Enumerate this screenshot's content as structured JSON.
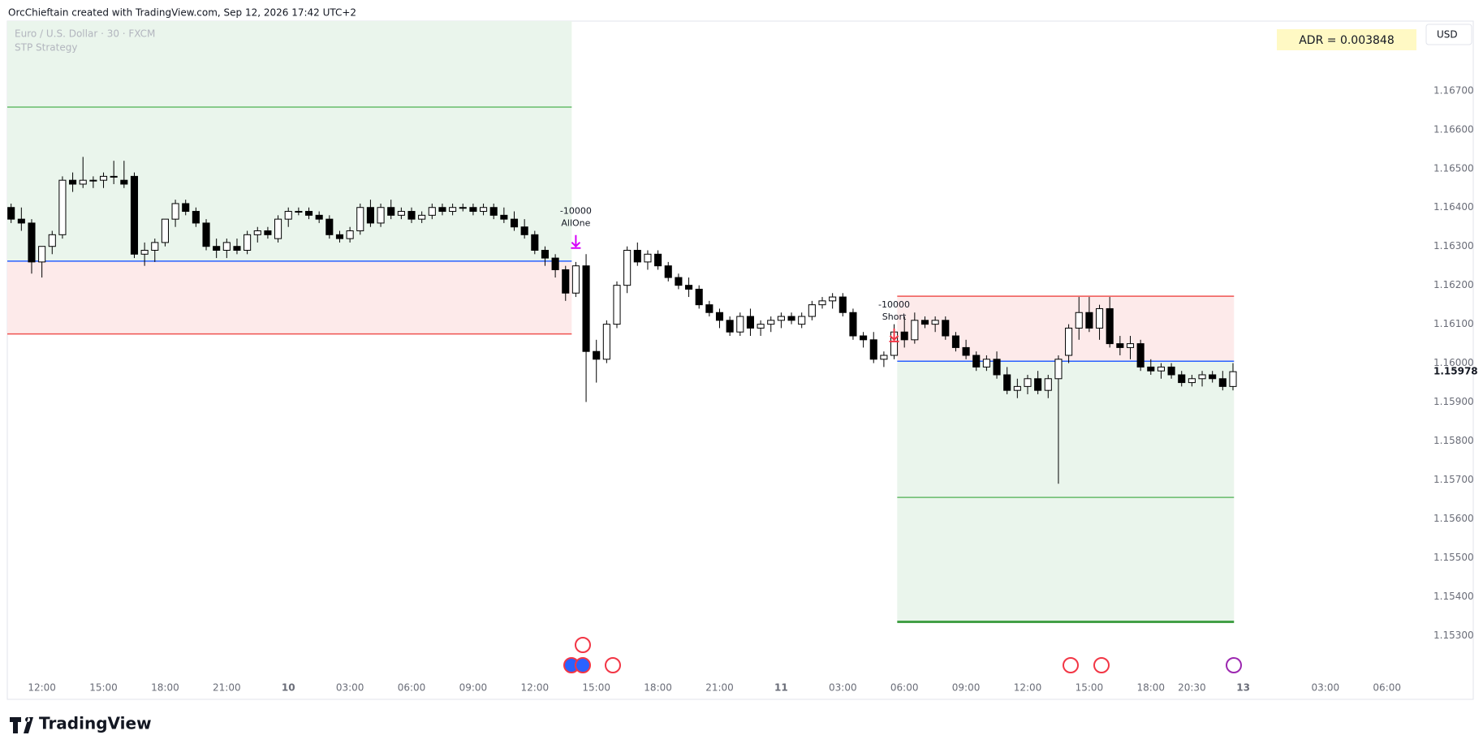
{
  "header": "OrcChieftain created with TradingView.com, Sep 12, 2026 17:42 UTC+2",
  "footer_brand": "TradingView",
  "chart_data": {
    "type": "candlestick",
    "title": "Euro / U.S. Dollar · 30 · FXCM",
    "subtitle": "STP Strategy",
    "adr_label": "ADR = 0.003848",
    "currency": "USD",
    "up_color": "#ffffff",
    "down_color": "#000000",
    "open": [
      1.164,
      1.1637,
      1.1636,
      1.1626,
      1.163,
      1.1633,
      1.1647,
      1.1646,
      1.1647,
      1.1647,
      1.1648,
      1.1647,
      1.1648,
      1.1628,
      1.1629,
      1.1631,
      1.1637,
      1.1641,
      1.1639,
      1.1636,
      1.163,
      1.1629,
      1.163,
      1.1629,
      1.1633,
      1.1634,
      1.1632,
      1.1637,
      1.1639,
      1.1639,
      1.1638,
      1.1637,
      1.1633,
      1.1632,
      1.1634,
      1.164,
      1.1636,
      1.164,
      1.1638,
      1.1639,
      1.1637,
      1.1638,
      1.164,
      1.1639,
      1.164,
      1.164,
      1.1639,
      1.164,
      1.1638,
      1.1637,
      1.1635,
      1.1633,
      1.1629,
      1.1627,
      1.1624,
      1.1618,
      1.1625,
      1.1603,
      1.1601,
      1.161,
      1.162,
      1.1629,
      1.1626,
      1.1628,
      1.1625,
      1.1622,
      1.162,
      1.1619,
      1.1615,
      1.1613,
      1.1611,
      1.1608,
      1.1612,
      1.1609,
      1.161,
      1.1611,
      1.1612,
      1.161,
      1.1612,
      1.1615,
      1.1616,
      1.1617,
      1.1613,
      1.1607,
      1.1606,
      1.1601,
      1.1602,
      1.1608,
      1.1606,
      1.1611,
      1.161,
      1.1611,
      1.1607,
      1.1604,
      1.1602,
      1.1599,
      1.1601,
      1.1597,
      1.1593,
      1.1594,
      1.1596,
      1.1593,
      1.1596,
      1.1602,
      1.1609,
      1.1613,
      1.1609,
      1.1614,
      1.1605,
      1.1604,
      1.1605,
      1.1599,
      1.1598,
      1.1599,
      1.1597,
      1.1595,
      1.1596,
      1.1597,
      1.1596,
      1.1594
    ],
    "high": [
      1.1641,
      1.164,
      1.1637,
      1.163,
      1.1634,
      1.1648,
      1.1649,
      1.1653,
      1.1648,
      1.1649,
      1.1652,
      1.1652,
      1.1649,
      1.1631,
      1.1632,
      1.1637,
      1.1642,
      1.1642,
      1.164,
      1.1637,
      1.1632,
      1.1632,
      1.1632,
      1.1634,
      1.1635,
      1.1635,
      1.1638,
      1.164,
      1.164,
      1.164,
      1.1639,
      1.1638,
      1.1634,
      1.1635,
      1.1641,
      1.1642,
      1.1641,
      1.1642,
      1.164,
      1.164,
      1.1639,
      1.1641,
      1.1641,
      1.1641,
      1.1641,
      1.1641,
      1.1641,
      1.1641,
      1.164,
      1.1639,
      1.1637,
      1.1634,
      1.163,
      1.1628,
      1.1625,
      1.1626,
      1.1628,
      1.1606,
      1.1611,
      1.1621,
      1.163,
      1.1631,
      1.1629,
      1.1629,
      1.1626,
      1.1623,
      1.1622,
      1.162,
      1.1616,
      1.1614,
      1.1612,
      1.1613,
      1.1614,
      1.1611,
      1.1612,
      1.1613,
      1.1613,
      1.1613,
      1.1616,
      1.1617,
      1.1618,
      1.1618,
      1.1614,
      1.1608,
      1.1608,
      1.1603,
      1.161,
      1.1612,
      1.1613,
      1.1612,
      1.1612,
      1.1612,
      1.1608,
      1.1606,
      1.1603,
      1.1602,
      1.1603,
      1.1599,
      1.1596,
      1.1597,
      1.1598,
      1.1597,
      1.1602,
      1.161,
      1.1617,
      1.1617,
      1.1615,
      1.1617,
      1.1607,
      1.1607,
      1.1606,
      1.1601,
      1.16,
      1.16,
      1.1598,
      1.1597,
      1.1598,
      1.1598,
      1.1598,
      1.16
    ],
    "low": [
      1.1636,
      1.1634,
      1.1623,
      1.1622,
      1.1628,
      1.1632,
      1.1644,
      1.1645,
      1.1645,
      1.1645,
      1.1646,
      1.1645,
      1.1627,
      1.1625,
      1.1626,
      1.163,
      1.1635,
      1.1638,
      1.1635,
      1.1629,
      1.1627,
      1.1627,
      1.1628,
      1.1628,
      1.1631,
      1.1632,
      1.1631,
      1.1635,
      1.1638,
      1.1637,
      1.1636,
      1.1632,
      1.1631,
      1.1631,
      1.1633,
      1.1635,
      1.1635,
      1.1637,
      1.1637,
      1.1636,
      1.1636,
      1.1637,
      1.1638,
      1.1638,
      1.1639,
      1.1638,
      1.1638,
      1.1637,
      1.1636,
      1.1634,
      1.1632,
      1.1628,
      1.1625,
      1.1622,
      1.1616,
      1.1617,
      1.159,
      1.1595,
      1.16,
      1.1609,
      1.1618,
      1.1625,
      1.1624,
      1.1624,
      1.1621,
      1.1619,
      1.1617,
      1.1614,
      1.1612,
      1.1609,
      1.1607,
      1.1607,
      1.1607,
      1.1607,
      1.1608,
      1.1609,
      1.161,
      1.1609,
      1.1611,
      1.1614,
      1.1614,
      1.1612,
      1.1606,
      1.1604,
      1.16,
      1.1599,
      1.1601,
      1.1604,
      1.1605,
      1.1609,
      1.1608,
      1.1606,
      1.1603,
      1.1601,
      1.1598,
      1.1598,
      1.1596,
      1.1592,
      1.1591,
      1.1592,
      1.1592,
      1.1591,
      1.1569,
      1.16,
      1.1606,
      1.1608,
      1.1606,
      1.1604,
      1.1602,
      1.1601,
      1.1598,
      1.1597,
      1.1596,
      1.1596,
      1.1594,
      1.1594,
      1.1594,
      1.1595,
      1.1593,
      1.1593
    ],
    "close": [
      1.1637,
      1.1636,
      1.1626,
      1.163,
      1.1633,
      1.1647,
      1.1646,
      1.1647,
      1.1647,
      1.1648,
      1.1648,
      1.1646,
      1.1628,
      1.1629,
      1.1631,
      1.1637,
      1.1641,
      1.1639,
      1.1636,
      1.163,
      1.1629,
      1.1631,
      1.1629,
      1.1633,
      1.1634,
      1.1633,
      1.1637,
      1.1639,
      1.1639,
      1.1638,
      1.1637,
      1.1633,
      1.1632,
      1.1634,
      1.164,
      1.1636,
      1.164,
      1.1638,
      1.1639,
      1.1637,
      1.1638,
      1.164,
      1.1639,
      1.164,
      1.164,
      1.1639,
      1.164,
      1.1638,
      1.1637,
      1.1635,
      1.1633,
      1.1629,
      1.1627,
      1.1624,
      1.1618,
      1.1625,
      1.1603,
      1.1601,
      1.161,
      1.162,
      1.1629,
      1.1626,
      1.1628,
      1.1625,
      1.1622,
      1.162,
      1.1619,
      1.1615,
      1.1613,
      1.1611,
      1.1608,
      1.1612,
      1.1609,
      1.161,
      1.1611,
      1.1612,
      1.1611,
      1.1612,
      1.1615,
      1.1616,
      1.1617,
      1.1613,
      1.1607,
      1.1606,
      1.1601,
      1.1602,
      1.1608,
      1.1606,
      1.1611,
      1.161,
      1.1611,
      1.1607,
      1.1604,
      1.1602,
      1.1599,
      1.1601,
      1.1597,
      1.1593,
      1.1594,
      1.1596,
      1.1593,
      1.1596,
      1.1601,
      1.1609,
      1.1613,
      1.1609,
      1.1614,
      1.1605,
      1.1604,
      1.1605,
      1.1599,
      1.1598,
      1.1599,
      1.1597,
      1.1595,
      1.1596,
      1.1597,
      1.1596,
      1.1594,
      1.15978
    ],
    "xlim": [
      -0.37,
      137.5
    ],
    "xticks": [
      {
        "value": 3,
        "label": "12:00"
      },
      {
        "value": 9,
        "label": "15:00"
      },
      {
        "value": 15,
        "label": "18:00"
      },
      {
        "value": 21,
        "label": "21:00"
      },
      {
        "value": 27,
        "label": "10"
      },
      {
        "value": 33,
        "label": "03:00"
      },
      {
        "value": 39,
        "label": "06:00"
      },
      {
        "value": 45,
        "label": "09:00"
      },
      {
        "value": 51,
        "label": "12:00"
      },
      {
        "value": 57,
        "label": "15:00"
      },
      {
        "value": 63,
        "label": "18:00"
      },
      {
        "value": 69,
        "label": "21:00"
      },
      {
        "value": 75,
        "label": "11"
      },
      {
        "value": 81,
        "label": "03:00"
      },
      {
        "value": 87,
        "label": "06:00"
      },
      {
        "value": 93,
        "label": "09:00"
      },
      {
        "value": 99,
        "label": "12:00"
      },
      {
        "value": 105,
        "label": "15:00"
      },
      {
        "value": 111,
        "label": "18:00"
      },
      {
        "value": 115,
        "label": "20:30"
      },
      {
        "value": 120,
        "label": "13"
      },
      {
        "value": 128,
        "label": "03:00"
      },
      {
        "value": 134,
        "label": "06:00"
      }
    ],
    "ylim": [
      1.15136,
      1.16879
    ],
    "yticks": [
      {
        "value": 1.167,
        "label": "1.16700"
      },
      {
        "value": 1.166,
        "label": "1.16600"
      },
      {
        "value": 1.165,
        "label": "1.16500"
      },
      {
        "value": 1.164,
        "label": "1.16400"
      },
      {
        "value": 1.163,
        "label": "1.16300"
      },
      {
        "value": 1.162,
        "label": "1.16200"
      },
      {
        "value": 1.161,
        "label": "1.16100"
      },
      {
        "value": 1.16,
        "label": "1.16000"
      },
      {
        "value": 1.159,
        "label": "1.15900"
      },
      {
        "value": 1.158,
        "label": "1.15800"
      },
      {
        "value": 1.157,
        "label": "1.15700"
      },
      {
        "value": 1.156,
        "label": "1.15600"
      },
      {
        "value": 1.155,
        "label": "1.15500"
      },
      {
        "value": 1.154,
        "label": "1.15400"
      },
      {
        "value": 1.153,
        "label": "1.15300"
      }
    ],
    "zones": [
      {
        "from": -0.37,
        "to": 54.6,
        "top": 1.16879,
        "bottom": 1.16262,
        "color": "#eaf5ec"
      },
      {
        "from": -0.37,
        "to": 54.6,
        "top": 1.16262,
        "bottom": 1.16075,
        "color": "#fdeaea"
      },
      {
        "from": 86.3,
        "to": 119.1,
        "top": 1.16172,
        "bottom": 1.16005,
        "color": "#fdeaea"
      },
      {
        "from": 86.3,
        "to": 119.1,
        "top": 1.16005,
        "bottom": 1.15335,
        "color": "#eaf5ec"
      }
    ],
    "levels": [
      {
        "value": 1.16658,
        "from": -0.37,
        "to": 54.6,
        "color": "#66bb6a",
        "width": 1.5
      },
      {
        "value": 1.16262,
        "from": -0.37,
        "to": 54.6,
        "color": "#2962ff",
        "width": 1.5
      },
      {
        "value": 1.16075,
        "from": -0.37,
        "to": 54.6,
        "color": "#ef5350",
        "width": 1.5
      },
      {
        "value": 1.16172,
        "from": 86.3,
        "to": 119.1,
        "color": "#ef5350",
        "width": 1.5
      },
      {
        "value": 1.16005,
        "from": 86.3,
        "to": 119.1,
        "color": "#2962ff",
        "width": 1.5
      },
      {
        "value": 1.15655,
        "from": 86.3,
        "to": 119.1,
        "color": "#66bb6a",
        "width": 1.5
      },
      {
        "value": 1.15335,
        "from": 86.3,
        "to": 119.1,
        "color": "#43a047",
        "width": 3
      }
    ],
    "trades": [
      {
        "index": 55,
        "price": 1.163,
        "qty": -10000,
        "label": "AllOne",
        "color": "#d500f9"
      },
      {
        "index": 86,
        "price": 1.1606,
        "qty": -10000,
        "label": "Short",
        "color": "#f23645"
      }
    ]
  }
}
